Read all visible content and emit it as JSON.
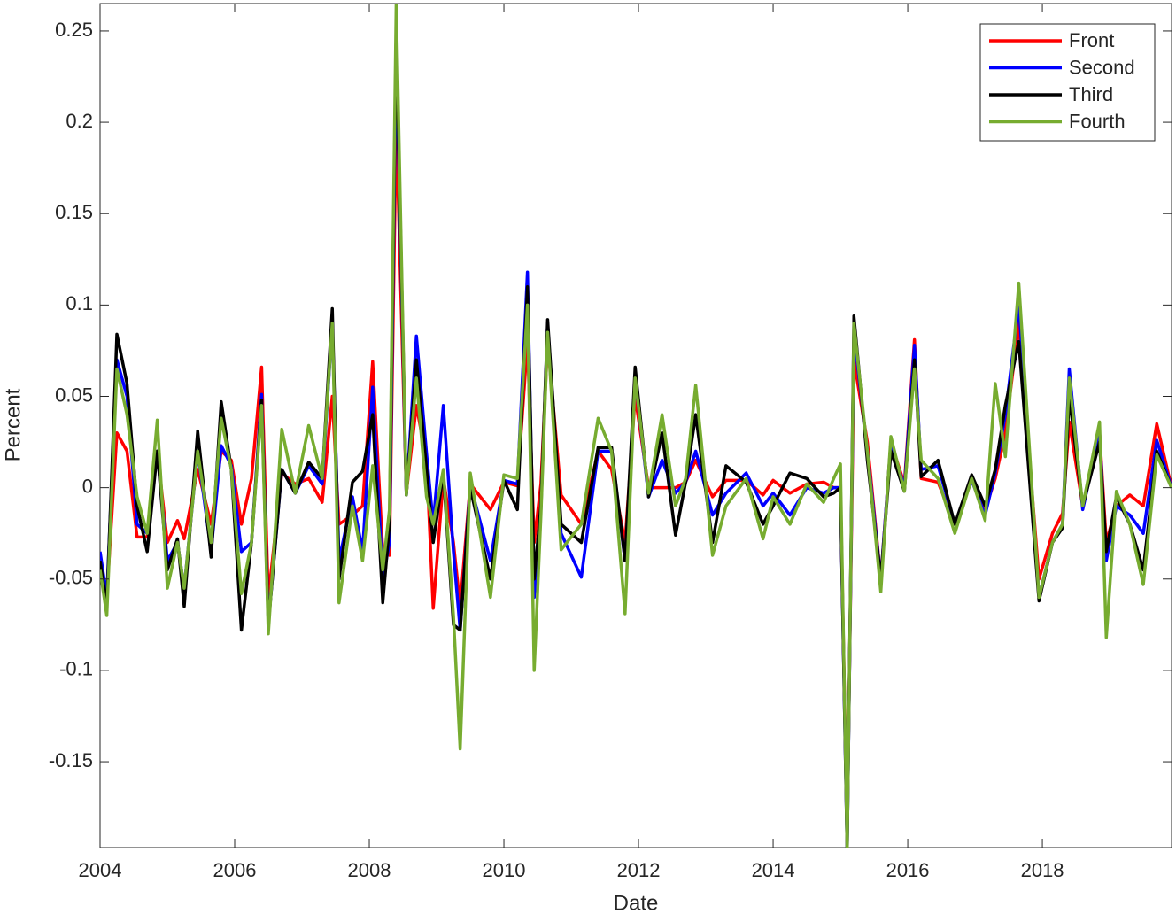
{
  "chart_data": {
    "type": "line",
    "x_label": "Date",
    "y_label": "Percent",
    "xlim": [
      2004,
      2019.92
    ],
    "ylim": [
      -0.197,
      0.265
    ],
    "xticks": [
      2004,
      2006,
      2008,
      2010,
      2012,
      2014,
      2016,
      2018
    ],
    "yticks": [
      -0.15,
      -0.1,
      -0.05,
      0,
      0.05,
      0.1,
      0.15,
      0.2,
      0.25
    ],
    "legend_position": "upper-right",
    "x": [
      2004.0,
      2004.1,
      2004.25,
      2004.4,
      2004.55,
      2004.7,
      2004.85,
      2005.0,
      2005.15,
      2005.25,
      2005.45,
      2005.65,
      2005.8,
      2005.95,
      2006.1,
      2006.25,
      2006.4,
      2006.5,
      2006.7,
      2006.9,
      2007.1,
      2007.3,
      2007.45,
      2007.55,
      2007.75,
      2007.9,
      2008.05,
      2008.2,
      2008.3,
      2008.4,
      2008.55,
      2008.7,
      2008.85,
      2008.95,
      2009.1,
      2009.25,
      2009.35,
      2009.5,
      2009.8,
      2010.0,
      2010.2,
      2010.35,
      2010.45,
      2010.55,
      2010.65,
      2010.85,
      2011.15,
      2011.4,
      2011.6,
      2011.8,
      2011.95,
      2012.15,
      2012.35,
      2012.55,
      2012.7,
      2012.85,
      2013.1,
      2013.3,
      2013.6,
      2013.85,
      2014.0,
      2014.25,
      2014.5,
      2014.75,
      2014.9,
      2015.0,
      2015.1,
      2015.2,
      2015.4,
      2015.6,
      2015.75,
      2015.95,
      2016.1,
      2016.2,
      2016.45,
      2016.7,
      2016.95,
      2017.15,
      2017.3,
      2017.45,
      2017.65,
      2017.95,
      2018.15,
      2018.3,
      2018.4,
      2018.6,
      2018.85,
      2018.95,
      2019.1,
      2019.3,
      2019.5,
      2019.7,
      2019.92
    ],
    "series": [
      {
        "name": "Front",
        "color": "#ff0000",
        "values": [
          -0.04,
          -0.06,
          0.03,
          0.02,
          -0.027,
          -0.027,
          0.02,
          -0.03,
          -0.018,
          -0.028,
          0.01,
          -0.02,
          0.02,
          0.015,
          -0.02,
          0.005,
          0.066,
          -0.06,
          0.008,
          0.002,
          0.005,
          -0.008,
          0.05,
          -0.02,
          -0.015,
          -0.01,
          0.069,
          -0.035,
          -0.037,
          0.2,
          -0.003,
          0.045,
          0.015,
          -0.066,
          0.005,
          -0.03,
          -0.065,
          0.002,
          -0.012,
          0.003,
          0.001,
          0.08,
          -0.03,
          0.002,
          0.08,
          -0.004,
          -0.02,
          0.02,
          0.01,
          -0.03,
          0.05,
          0.0,
          0.0,
          0.0,
          0.003,
          0.015,
          -0.005,
          0.004,
          0.004,
          -0.004,
          0.004,
          -0.003,
          0.002,
          0.003,
          0.0,
          0.0,
          -0.19,
          0.07,
          0.025,
          -0.05,
          0.025,
          0.002,
          0.081,
          0.005,
          0.003,
          -0.02,
          0.004,
          -0.012,
          0.005,
          0.03,
          0.09,
          -0.05,
          -0.025,
          -0.014,
          0.036,
          -0.01,
          0.03,
          -0.03,
          -0.01,
          -0.004,
          -0.01,
          0.035,
          0
        ]
      },
      {
        "name": "Second",
        "color": "#0000ff",
        "values": [
          -0.035,
          -0.06,
          0.07,
          0.05,
          -0.02,
          -0.025,
          0.02,
          -0.04,
          -0.03,
          -0.055,
          0.02,
          -0.035,
          0.023,
          0.012,
          -0.035,
          -0.03,
          0.051,
          -0.075,
          0.01,
          -0.003,
          0.012,
          0.002,
          0.09,
          -0.04,
          -0.005,
          -0.035,
          0.055,
          -0.05,
          -0.03,
          0.24,
          -0.004,
          0.083,
          0.019,
          -0.02,
          0.045,
          -0.035,
          -0.078,
          0.002,
          -0.04,
          0.004,
          0.002,
          0.118,
          -0.06,
          -0.012,
          0.09,
          -0.025,
          -0.049,
          0.02,
          0.02,
          -0.04,
          0.06,
          -0.005,
          0.015,
          -0.003,
          0.003,
          0.02,
          -0.015,
          -0.003,
          0.008,
          -0.01,
          -0.003,
          -0.015,
          0.0,
          -0.003,
          0.0,
          0.0,
          -0.2,
          0.085,
          0.02,
          -0.05,
          0.025,
          0.0,
          0.078,
          0.01,
          0.012,
          -0.02,
          0.004,
          -0.015,
          0.008,
          0.04,
          0.1,
          -0.06,
          -0.03,
          -0.02,
          0.065,
          -0.012,
          0.03,
          -0.04,
          -0.01,
          -0.015,
          -0.025,
          0.026,
          0
        ]
      },
      {
        "name": "Third",
        "color": "#000000",
        "values": [
          -0.04,
          -0.065,
          0.084,
          0.057,
          -0.01,
          -0.035,
          0.02,
          -0.045,
          -0.028,
          -0.065,
          0.031,
          -0.038,
          0.047,
          0.01,
          -0.078,
          -0.03,
          0.048,
          -0.075,
          0.01,
          -0.003,
          0.014,
          0.005,
          0.098,
          -0.05,
          0.003,
          0.009,
          0.04,
          -0.063,
          -0.02,
          0.25,
          -0.004,
          0.07,
          0.01,
          -0.03,
          0.008,
          -0.075,
          -0.078,
          0.0,
          -0.05,
          0.004,
          -0.012,
          0.11,
          -0.05,
          -0.01,
          0.092,
          -0.02,
          -0.03,
          0.022,
          0.022,
          -0.04,
          0.066,
          -0.005,
          0.03,
          -0.026,
          0.003,
          0.04,
          -0.03,
          0.012,
          0.003,
          -0.02,
          -0.01,
          0.008,
          0.005,
          -0.005,
          -0.003,
          0.0,
          -0.2,
          0.094,
          0.015,
          -0.05,
          0.02,
          -0.002,
          0.07,
          0.006,
          0.015,
          -0.02,
          0.007,
          -0.01,
          0.01,
          0.045,
          0.08,
          -0.062,
          -0.03,
          -0.022,
          0.05,
          -0.01,
          0.025,
          -0.035,
          -0.005,
          -0.02,
          -0.045,
          0.02,
          0
        ]
      },
      {
        "name": "Fourth",
        "color": "#77ac30",
        "values": [
          -0.045,
          -0.07,
          0.065,
          0.04,
          -0.005,
          -0.025,
          0.037,
          -0.055,
          -0.03,
          -0.055,
          0.02,
          -0.03,
          0.038,
          0.01,
          -0.058,
          -0.03,
          0.045,
          -0.08,
          0.032,
          -0.003,
          0.034,
          0.005,
          0.09,
          -0.063,
          -0.01,
          -0.04,
          0.012,
          -0.045,
          -0.012,
          0.265,
          -0.004,
          0.06,
          -0.005,
          -0.02,
          0.01,
          -0.07,
          -0.143,
          0.008,
          -0.06,
          0.007,
          0.005,
          0.1,
          -0.1,
          -0.015,
          0.085,
          -0.034,
          -0.02,
          0.038,
          0.02,
          -0.069,
          0.06,
          -0.003,
          0.04,
          -0.01,
          0.005,
          0.056,
          -0.037,
          -0.01,
          0.005,
          -0.028,
          -0.005,
          -0.02,
          0.002,
          -0.008,
          0.005,
          0.013,
          -0.2,
          0.09,
          0.02,
          -0.057,
          0.028,
          -0.002,
          0.065,
          0.015,
          0.005,
          -0.025,
          0.005,
          -0.018,
          0.057,
          0.017,
          0.112,
          -0.06,
          -0.03,
          -0.02,
          0.06,
          -0.01,
          0.036,
          -0.082,
          -0.002,
          -0.02,
          -0.053,
          0.018,
          0
        ]
      }
    ]
  }
}
